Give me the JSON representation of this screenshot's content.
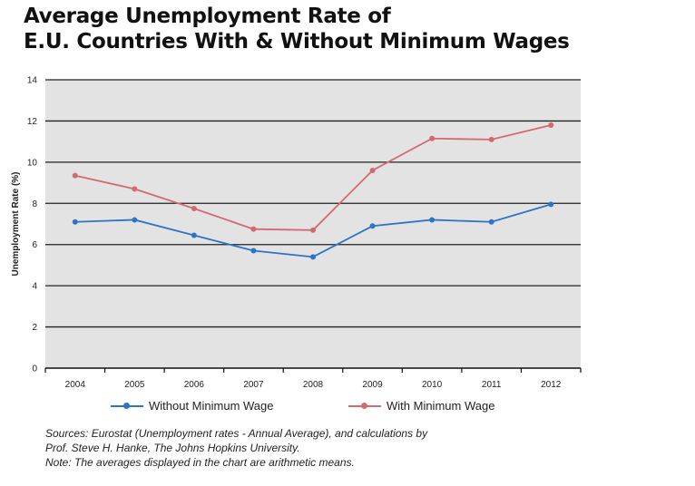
{
  "title_lines": [
    "Average Unemployment Rate of",
    "E.U. Countries With & Without Minimum Wages"
  ],
  "chart_data": {
    "type": "line",
    "title": "Average Unemployment Rate of E.U. Countries With & Without Minimum Wages",
    "xlabel": "",
    "ylabel": "Unemployment Rate (%)",
    "ylim": [
      0,
      14
    ],
    "yticks": [
      0,
      2,
      4,
      6,
      8,
      10,
      12,
      14
    ],
    "grid": true,
    "legend_position": "bottom",
    "categories": [
      "2004",
      "2005",
      "2006",
      "2007",
      "2008",
      "2009",
      "2010",
      "2011",
      "2012"
    ],
    "series": [
      {
        "name": "Without Minimum Wage",
        "color": "#2e74c4",
        "values": [
          7.1,
          7.2,
          6.45,
          5.7,
          5.4,
          6.9,
          7.2,
          7.1,
          7.95
        ]
      },
      {
        "name": "With Minimum Wage",
        "color": "#d36a70",
        "values": [
          9.35,
          8.7,
          7.75,
          6.75,
          6.7,
          9.6,
          11.15,
          11.1,
          11.8
        ]
      }
    ]
  },
  "legend": [
    {
      "label": "Without Minimum Wage",
      "color": "#2e74c4"
    },
    {
      "label": "With Minimum Wage",
      "color": "#d36a70"
    }
  ],
  "notes": {
    "sources_line1": "Sources: Eurostat (Unemployment rates - Annual Average), and calculations by",
    "sources_line2": "Prof. Steve H. Hanke, The Johns Hopkins University.",
    "note": "Note: The averages displayed in the chart are arithmetic means."
  },
  "colors": {
    "plot_background": "#e3e3e3",
    "gridline": "#222222"
  }
}
